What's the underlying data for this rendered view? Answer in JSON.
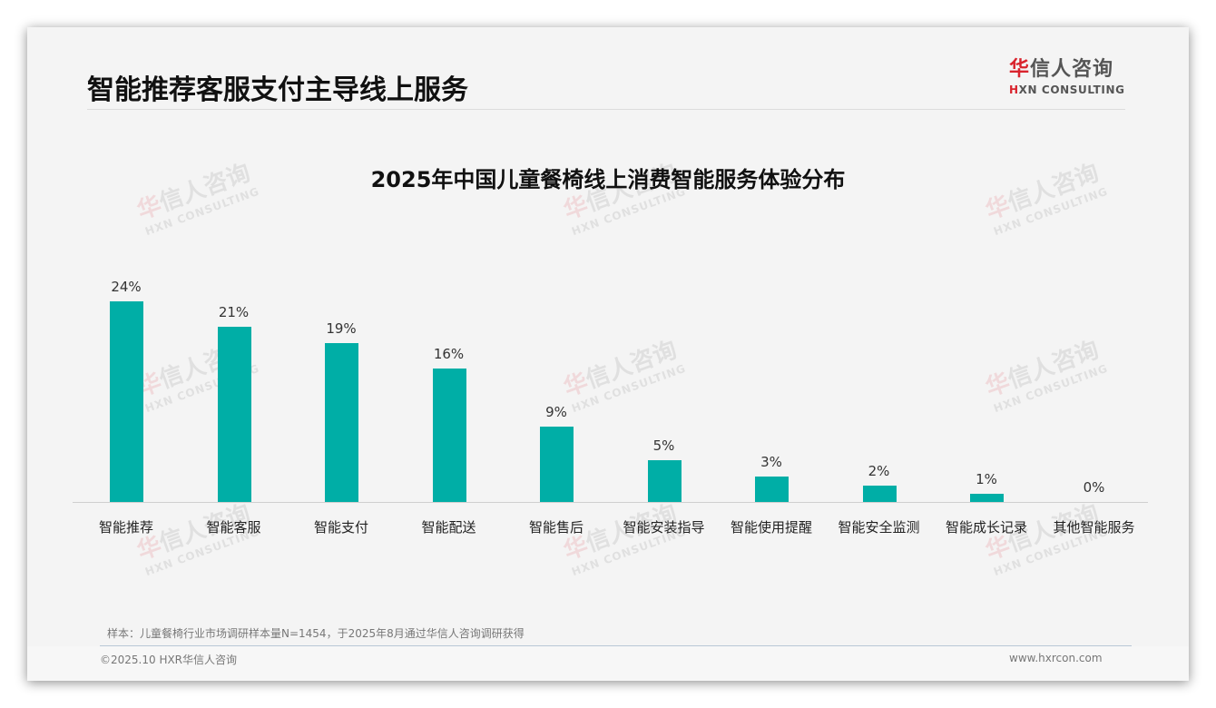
{
  "header": {
    "title": "智能推荐客服支付主导线上服务",
    "logo": {
      "cn_first": "华",
      "cn_rest": "信人咨询",
      "en_first": "H",
      "en_rest": "XN CONSULTING"
    }
  },
  "watermark": {
    "cn_first": "华",
    "cn_rest": "信人咨询",
    "en": "HXN CONSULTING"
  },
  "chart_data": {
    "type": "bar",
    "title": "2025年中国儿童餐椅线上消费智能服务体验分布",
    "categories": [
      "智能推荐",
      "智能客服",
      "智能支付",
      "智能配送",
      "智能售后",
      "智能安装指导",
      "智能使用提醒",
      "智能安全监测",
      "智能成长记录",
      "其他智能服务"
    ],
    "values": [
      24,
      21,
      19,
      16,
      9,
      5,
      3,
      2,
      1,
      0
    ],
    "value_labels": [
      "24%",
      "21%",
      "19%",
      "16%",
      "9%",
      "5%",
      "3%",
      "2%",
      "1%",
      "0%"
    ],
    "xlabel": "",
    "ylabel": "",
    "ylim": [
      0,
      25
    ],
    "grid": false,
    "legend": "none",
    "bar_color": "#00aea6"
  },
  "footer": {
    "source": "样本：儿童餐椅行业市场调研样本量N=1454，于2025年8月通过华信人咨询调研获得",
    "copyright": "©2025.10 HXR华信人咨询",
    "website": "www.hxrcon.com"
  }
}
